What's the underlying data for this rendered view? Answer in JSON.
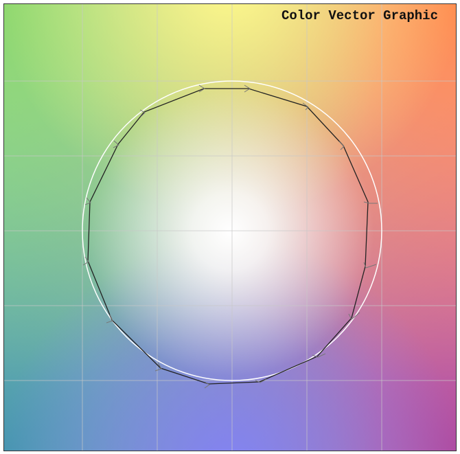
{
  "title": "Color Vector Graphic"
}
